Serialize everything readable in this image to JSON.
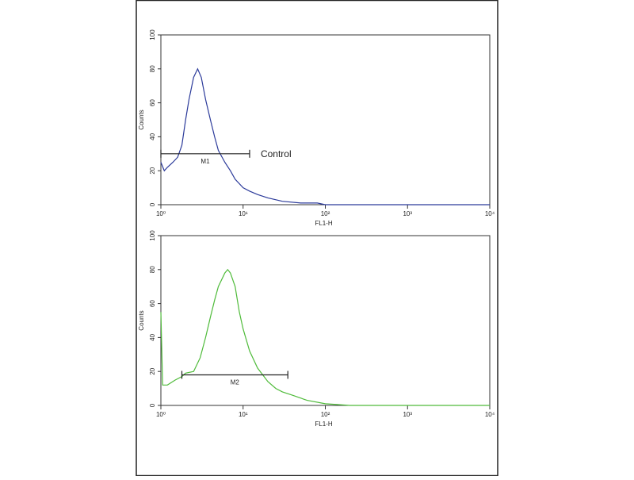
{
  "chart_data": [
    {
      "type": "line",
      "ylabel": "Counts",
      "xlabel": "FL1-H",
      "log_x": true,
      "xlim": [
        1,
        10000
      ],
      "ylim": [
        0,
        100
      ],
      "xticks": [
        {
          "value": 1,
          "label": "10⁰"
        },
        {
          "value": 10,
          "label": "10¹"
        },
        {
          "value": 100,
          "label": "10²"
        },
        {
          "value": 1000,
          "label": "10³"
        },
        {
          "value": 10000,
          "label": "10⁴"
        }
      ],
      "yticks": [
        0,
        20,
        40,
        60,
        80,
        100
      ],
      "color": "#2b3a9a",
      "x": [
        1,
        1.1,
        1.2,
        1.4,
        1.6,
        1.8,
        2.0,
        2.2,
        2.5,
        2.8,
        3.1,
        3.5,
        4,
        4.5,
        5,
        6,
        7,
        8,
        10,
        12,
        15,
        20,
        30,
        50,
        80,
        100,
        1000,
        10000
      ],
      "values": [
        25,
        20,
        22,
        25,
        28,
        35,
        50,
        62,
        75,
        80,
        75,
        62,
        50,
        40,
        32,
        25,
        20,
        15,
        10,
        8,
        6,
        4,
        2,
        1,
        1,
        0,
        0,
        0
      ],
      "gate": {
        "label": "M1",
        "x": [
          1,
          12
        ],
        "y": 30
      },
      "annotation": "Control"
    },
    {
      "type": "line",
      "ylabel": "Counts",
      "xlabel": "FL1-H",
      "log_x": true,
      "xlim": [
        1,
        10000
      ],
      "ylim": [
        0,
        100
      ],
      "xticks": [
        {
          "value": 1,
          "label": "10⁰"
        },
        {
          "value": 10,
          "label": "10¹"
        },
        {
          "value": 100,
          "label": "10²"
        },
        {
          "value": 1000,
          "label": "10³"
        },
        {
          "value": 10000,
          "label": "10⁴"
        }
      ],
      "yticks": [
        0,
        20,
        40,
        60,
        80,
        100
      ],
      "color": "#4fbb3a",
      "x": [
        1,
        1.05,
        1.2,
        1.5,
        1.8,
        2,
        2.5,
        3,
        3.5,
        4,
        4.5,
        5,
        6,
        6.5,
        7,
        8,
        9,
        10,
        12,
        15,
        20,
        25,
        30,
        40,
        60,
        100,
        200,
        10000
      ],
      "values": [
        55,
        12,
        12,
        15,
        17,
        19,
        20,
        28,
        40,
        52,
        62,
        70,
        78,
        80,
        78,
        70,
        55,
        45,
        32,
        22,
        14,
        10,
        8,
        6,
        3,
        1,
        0,
        0
      ],
      "gate": {
        "label": "M2",
        "x": [
          1.8,
          35
        ],
        "y": 18
      }
    }
  ]
}
